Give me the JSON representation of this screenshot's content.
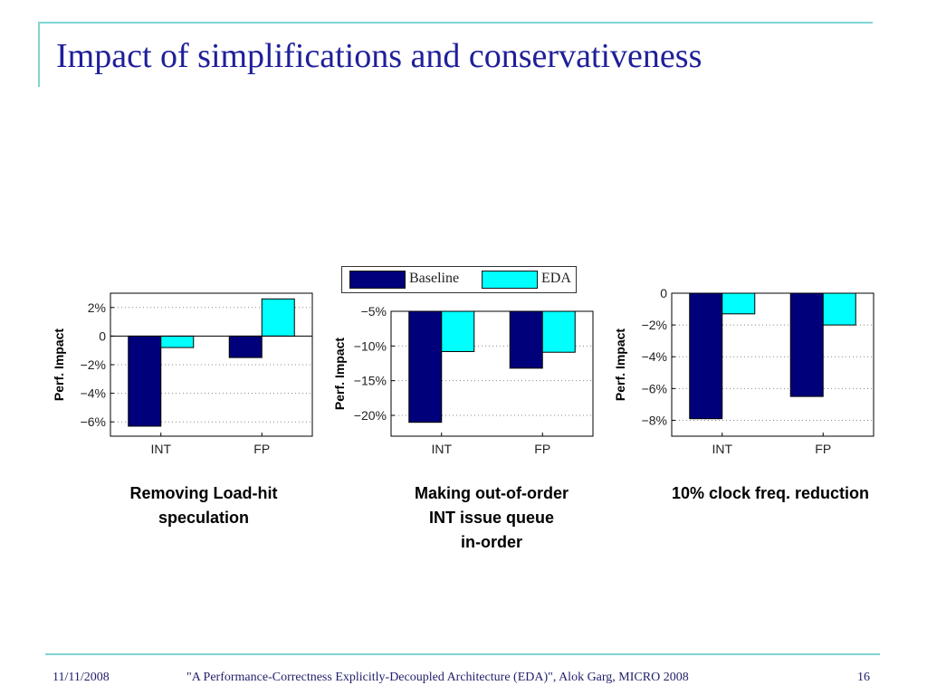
{
  "slide": {
    "title": "Impact of simplifications and conservativeness",
    "legend": {
      "baseline": "Baseline",
      "eda": "EDA"
    },
    "colors": {
      "baseline": "#00007a",
      "eda": "#00ffff",
      "accent": "#7fd3d3",
      "title": "#1f1f9a"
    },
    "footer": {
      "date": "11/11/2008",
      "citation": "\"A Performance-Correctness Explicitly-Decoupled Architecture (EDA)\", Alok Garg, MICRO 2008",
      "page": "16"
    }
  },
  "chart_data": [
    {
      "type": "bar",
      "caption_lines": [
        "Removing Load-hit",
        "speculation"
      ],
      "ylabel": "Perf. Impact",
      "categories": [
        "INT",
        "FP"
      ],
      "series": [
        {
          "name": "Baseline",
          "values": [
            -6.3,
            -1.5
          ]
        },
        {
          "name": "EDA",
          "values": [
            -0.8,
            2.6
          ]
        }
      ],
      "ylim": [
        3,
        -7
      ],
      "y_reversed": true,
      "yticks": [
        2,
        0,
        -2,
        -4,
        -6
      ],
      "ytick_labels": [
        "2%",
        "0",
        "−2%",
        "−4%",
        "−6%"
      ],
      "grid": true
    },
    {
      "type": "bar",
      "caption_lines": [
        "Making out-of-order",
        "INT issue queue",
        "in-order"
      ],
      "ylabel": "Perf. Impact",
      "categories": [
        "INT",
        "FP"
      ],
      "series": [
        {
          "name": "Baseline",
          "values": [
            -21,
            -13.2
          ]
        },
        {
          "name": "EDA",
          "values": [
            -10.8,
            -10.9
          ]
        }
      ],
      "ylim": [
        -5,
        -23
      ],
      "y_reversed": true,
      "yticks": [
        -5,
        -10,
        -15,
        -20
      ],
      "ytick_labels": [
        "−5%",
        "−10%",
        "−15%",
        "−20%"
      ],
      "grid": true
    },
    {
      "type": "bar",
      "caption_lines": [
        "10% clock freq. reduction"
      ],
      "ylabel": "Perf. Impact",
      "categories": [
        "INT",
        "FP"
      ],
      "series": [
        {
          "name": "Baseline",
          "values": [
            -7.9,
            -6.5
          ]
        },
        {
          "name": "EDA",
          "values": [
            -1.3,
            -2.0
          ]
        }
      ],
      "ylim": [
        0,
        -9
      ],
      "y_reversed": true,
      "yticks": [
        0,
        -2,
        -4,
        -6,
        -8
      ],
      "ytick_labels": [
        "0",
        "−2%",
        "−4%",
        "−6%",
        "−8%"
      ],
      "grid": true
    }
  ]
}
